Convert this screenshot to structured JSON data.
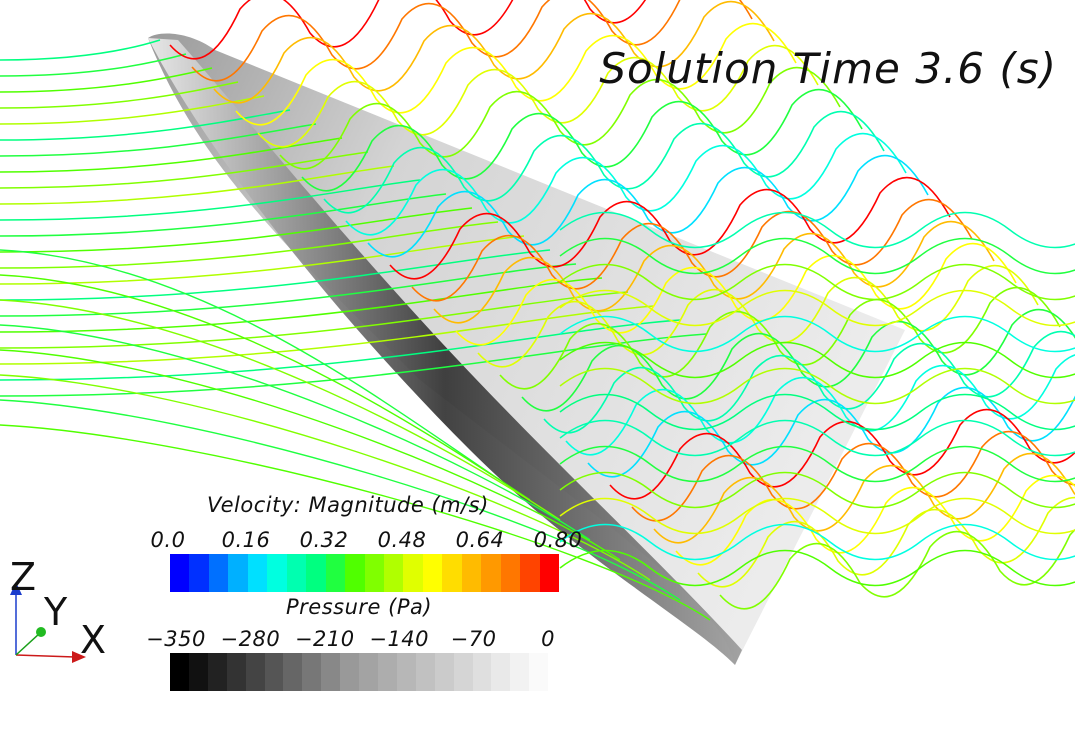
{
  "title": "Solution Time 3.6 (s)",
  "velocity_legend": {
    "title": "Velocity: Magnitude (m/s)",
    "ticks": [
      "0.0",
      "0.16",
      "0.32",
      "0.48",
      "0.64",
      "0.80"
    ],
    "colors": [
      "#0000ff",
      "#0030ff",
      "#0070ff",
      "#00b0ff",
      "#00e0ff",
      "#00ffe0",
      "#00ffb0",
      "#00ff80",
      "#20ff40",
      "#50ff00",
      "#80ff00",
      "#b0ff00",
      "#e0ff00",
      "#ffff00",
      "#ffdd00",
      "#ffbb00",
      "#ff9900",
      "#ff7700",
      "#ff4400",
      "#ff0000"
    ]
  },
  "pressure_legend": {
    "title": "Pressure (Pa)",
    "ticks": [
      "−350",
      "−280",
      "−210",
      "−140",
      "−70",
      "0"
    ],
    "colors": [
      "#000000",
      "#111111",
      "#222222",
      "#333333",
      "#444444",
      "#555555",
      "#666666",
      "#777777",
      "#888888",
      "#999999",
      "#a3a3a3",
      "#adadad",
      "#b7b7b7",
      "#c1c1c1",
      "#cbcbcb",
      "#d5d5d5",
      "#dfdfdf",
      "#e9e9e9",
      "#f2f2f2",
      "#fafafa"
    ]
  },
  "axes": {
    "z": "Z",
    "y": "Y",
    "x": "X"
  }
}
